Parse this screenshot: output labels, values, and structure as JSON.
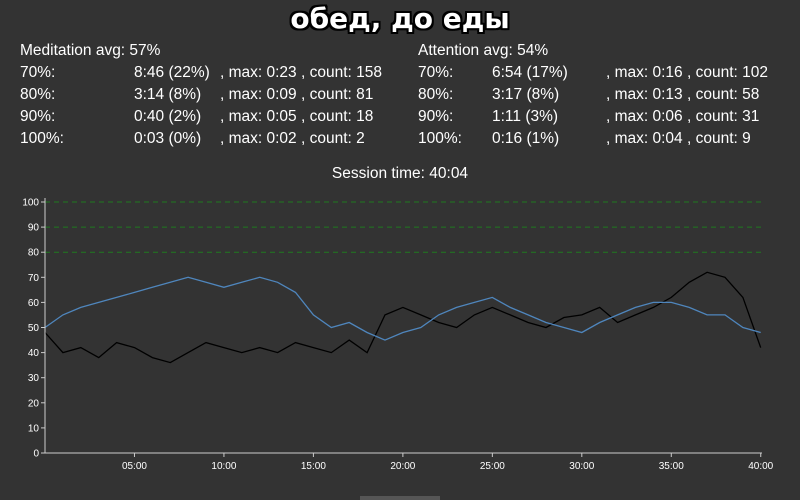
{
  "title": "обед, до еды",
  "meditation": {
    "header": "Meditation avg: 57%",
    "rows": [
      {
        "label": "70%:",
        "time": "8:46 (22%)",
        "detail": ", max: 0:23 , count: 158"
      },
      {
        "label": "80%:",
        "time": "3:14 (8%)",
        "detail": ", max: 0:09 , count: 81"
      },
      {
        "label": "90%:",
        "time": "0:40 (2%)",
        "detail": ", max: 0:05 , count: 18"
      },
      {
        "label": "100%:",
        "time": "0:03 (0%)",
        "detail": ", max: 0:02 , count: 2"
      }
    ]
  },
  "attention": {
    "header": "Attention avg: 54%",
    "rows": [
      {
        "label": "70%:",
        "time": "6:54 (17%)",
        "detail": ", max: 0:16 , count: 102"
      },
      {
        "label": "80%:",
        "time": "3:17 (8%)",
        "detail": ", max: 0:13 , count: 58"
      },
      {
        "label": "90%:",
        "time": "1:11 (3%)",
        "detail": ", max: 0:06 , count: 31"
      },
      {
        "label": "100%:",
        "time": "0:16 (1%)",
        "detail": ", max: 0:04 , count: 9"
      }
    ]
  },
  "session_time": "Session time: 40:04",
  "colors": {
    "background": "#333333",
    "attention_line": "#000000",
    "meditation_line": "#4f86bd",
    "threshold_lines": "#1f7a1f",
    "axis": "#cccccc"
  },
  "chart_data": {
    "type": "line",
    "xlim": [
      0,
      40.07
    ],
    "ylim": [
      0,
      100
    ],
    "yticks": [
      0,
      10,
      20,
      30,
      40,
      50,
      60,
      70,
      80,
      90,
      100
    ],
    "xticks": [
      {
        "v": 5,
        "label": "05:00"
      },
      {
        "v": 10,
        "label": "10:00"
      },
      {
        "v": 15,
        "label": "15:00"
      },
      {
        "v": 20,
        "label": "20:00"
      },
      {
        "v": 25,
        "label": "25:00"
      },
      {
        "v": 30,
        "label": "30:00"
      },
      {
        "v": 35,
        "label": "35:00"
      },
      {
        "v": 40,
        "label": "40:00"
      }
    ],
    "thresholds": [
      80,
      90,
      100
    ],
    "series": [
      {
        "color": "#000000",
        "x": [
          0,
          1,
          2,
          3,
          4,
          5,
          6,
          7,
          8,
          9,
          10,
          11,
          12,
          13,
          14,
          15,
          16,
          17,
          18,
          19,
          20,
          21,
          22,
          23,
          24,
          25,
          26,
          27,
          28,
          29,
          30,
          31,
          32,
          33,
          34,
          35,
          36,
          37,
          38,
          39,
          40
        ],
        "y": [
          48,
          40,
          42,
          38,
          44,
          42,
          38,
          36,
          40,
          44,
          42,
          40,
          42,
          40,
          44,
          42,
          40,
          45,
          40,
          55,
          58,
          55,
          52,
          50,
          55,
          58,
          55,
          52,
          50,
          54,
          55,
          58,
          52,
          55,
          58,
          62,
          68,
          72,
          70,
          62,
          42
        ]
      },
      {
        "color": "#4f86bd",
        "x": [
          0,
          1,
          2,
          3,
          4,
          5,
          6,
          7,
          8,
          9,
          10,
          11,
          12,
          13,
          14,
          15,
          16,
          17,
          18,
          19,
          20,
          21,
          22,
          23,
          24,
          25,
          26,
          27,
          28,
          29,
          30,
          31,
          32,
          33,
          34,
          35,
          36,
          37,
          38,
          39,
          40
        ],
        "y": [
          50,
          55,
          58,
          60,
          62,
          64,
          66,
          68,
          70,
          68,
          66,
          68,
          70,
          68,
          64,
          55,
          50,
          52,
          48,
          45,
          48,
          50,
          55,
          58,
          60,
          62,
          58,
          55,
          52,
          50,
          48,
          52,
          55,
          58,
          60,
          60,
          58,
          55,
          55,
          50,
          48
        ]
      }
    ]
  }
}
